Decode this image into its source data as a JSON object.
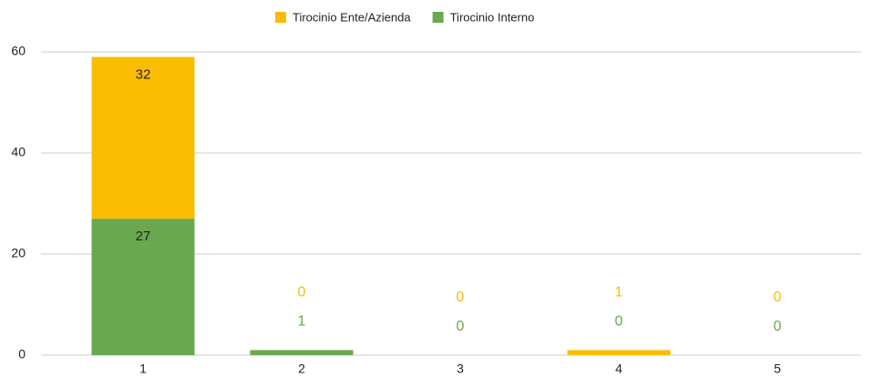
{
  "chart_data": {
    "type": "stacked_bar",
    "categories": [
      "1",
      "2",
      "3",
      "4",
      "5"
    ],
    "series": [
      {
        "name": "Tirocinio Interno",
        "color": "#6aa84f",
        "values": [
          27,
          1,
          0,
          0,
          0
        ]
      },
      {
        "name": "Tirocinio Ente/Azienda",
        "color": "#fbbc04",
        "values": [
          32,
          0,
          0,
          1,
          0
        ]
      }
    ],
    "ylim": [
      0,
      60
    ],
    "yticks": [
      0,
      20,
      40,
      60
    ],
    "grid": true,
    "legend": "top"
  }
}
